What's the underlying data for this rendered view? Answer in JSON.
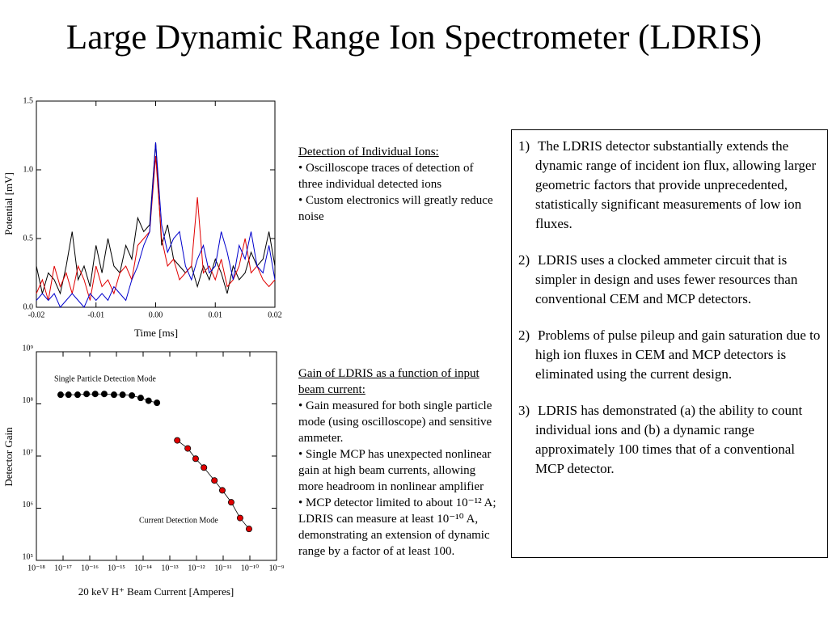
{
  "title": "Large Dynamic Range Ion Spectrometer (LDRIS)",
  "chart_data": [
    {
      "type": "line",
      "x_label": "Time [ms]",
      "y_label": "Potential [mV]",
      "x": [
        -0.02,
        -0.019,
        -0.018,
        -0.017,
        -0.016,
        -0.015,
        -0.014,
        -0.013,
        -0.012,
        -0.011,
        -0.01,
        -0.009,
        -0.008,
        -0.007,
        -0.006,
        -0.005,
        -0.004,
        -0.003,
        -0.002,
        -0.001,
        0,
        0.001,
        0.002,
        0.003,
        0.004,
        0.005,
        0.006,
        0.007,
        0.008,
        0.009,
        0.01,
        0.011,
        0.012,
        0.013,
        0.014,
        0.015,
        0.016,
        0.017,
        0.018,
        0.019,
        0.02
      ],
      "series": [
        {
          "color": "#000000",
          "values": [
            0.3,
            0.1,
            0.25,
            0.2,
            0.1,
            0.3,
            0.55,
            0.2,
            0.3,
            0.15,
            0.45,
            0.25,
            0.5,
            0.3,
            0.25,
            0.45,
            0.35,
            0.65,
            0.55,
            0.6,
            1.2,
            0.45,
            0.6,
            0.35,
            0.3,
            0.25,
            0.3,
            0.15,
            0.3,
            0.2,
            0.35,
            0.25,
            0.1,
            0.3,
            0.2,
            0.25,
            0.4,
            0.3,
            0.35,
            0.55,
            0.3
          ]
        },
        {
          "color": "#e00000",
          "values": [
            0.1,
            0.2,
            0.05,
            0.3,
            0.15,
            0.25,
            0.1,
            0.3,
            0.2,
            0.05,
            0.3,
            0.15,
            0.2,
            0.1,
            0.25,
            0.3,
            0.2,
            0.45,
            0.5,
            0.55,
            1.1,
            0.5,
            0.3,
            0.35,
            0.2,
            0.25,
            0.3,
            0.8,
            0.25,
            0.3,
            0.2,
            0.35,
            0.15,
            0.2,
            0.3,
            0.5,
            0.25,
            0.3,
            0.2,
            0.15,
            0.2
          ]
        },
        {
          "color": "#0000cc",
          "values": [
            0.05,
            0.1,
            0.05,
            0.1,
            0.0,
            0.05,
            0.1,
            0.05,
            0.0,
            0.1,
            0.05,
            0.1,
            0.05,
            0.15,
            0.1,
            0.05,
            0.2,
            0.3,
            0.45,
            0.55,
            1.2,
            0.6,
            0.4,
            0.5,
            0.55,
            0.3,
            0.2,
            0.35,
            0.45,
            0.25,
            0.3,
            0.55,
            0.4,
            0.2,
            0.45,
            0.35,
            0.55,
            0.3,
            0.25,
            0.45,
            0.2
          ]
        }
      ],
      "xlim": [
        -0.02,
        0.02
      ],
      "xticks": [
        -0.02,
        -0.01,
        {
          "value": 0,
          "label": "0.00"
        },
        0.01,
        0.02
      ],
      "ylim": [
        0,
        1.5
      ],
      "yticks": [
        {
          "value": 0,
          "label": "0.0"
        },
        0.5,
        {
          "value": 1,
          "label": "1.0"
        },
        1.5
      ]
    },
    {
      "type": "scatter",
      "x_label": "20 keV H⁺ Beam Current [Amperes]",
      "y_label": "Detector Gain",
      "xscale": "log",
      "yscale": "log",
      "series": [
        {
          "name": "Single Particle Detection Mode",
          "color": "#000000",
          "x": [
            8.1e-18,
            1.6e-17,
            3.5e-17,
            7.6e-17,
            1.6e-16,
            3.5e-16,
            8.1e-16,
            1.7e-15,
            3.8e-15,
            8.1e-15,
            1.6e-14,
            3.3e-14
          ],
          "values": [
            150000000.0,
            150000000.0,
            150000000.0,
            155000000.0,
            155000000.0,
            155000000.0,
            150000000.0,
            150000000.0,
            145000000.0,
            130000000.0,
            115000000.0,
            105000000.0
          ]
        },
        {
          "name": "Current Detection Mode",
          "color": "#e00000",
          "x": [
            1.9e-13,
            4.7e-13,
            9.3e-13,
            1.9e-12,
            4.7e-12,
            9.3e-12,
            2e-11,
            4.3e-11,
            9.3e-11
          ],
          "values": [
            20000000.0,
            14000000.0,
            8900000.0,
            6000000.0,
            3400000.0,
            2200000.0,
            1300000.0,
            650000.0,
            400000.0
          ]
        }
      ],
      "xlim": [
        1e-18,
        1e-09
      ],
      "xticks": [
        {
          "value": 1e-18,
          "label": "10⁻¹⁸"
        },
        {
          "value": 1e-17,
          "label": "10⁻¹⁷"
        },
        {
          "value": 1e-16,
          "label": "10⁻¹⁶"
        },
        {
          "value": 1e-15,
          "label": "10⁻¹⁵"
        },
        {
          "value": 1e-14,
          "label": "10⁻¹⁴"
        },
        {
          "value": 1e-13,
          "label": "10⁻¹³"
        },
        {
          "value": 1e-12,
          "label": "10⁻¹²"
        },
        {
          "value": 1e-11,
          "label": "10⁻¹¹"
        },
        {
          "value": 1e-10,
          "label": "10⁻¹⁰"
        },
        {
          "value": 1e-09,
          "label": "10⁻⁹"
        }
      ],
      "ylim": [
        100000.0,
        1000000000.0
      ],
      "yticks": [
        {
          "value": 100000.0,
          "label": "10⁵"
        },
        {
          "value": 1000000.0,
          "label": "10⁶"
        },
        {
          "value": 10000000.0,
          "label": "10⁷"
        },
        {
          "value": 100000000.0,
          "label": "10⁸"
        },
        {
          "value": 1000000000.0,
          "label": "10⁹"
        }
      ]
    }
  ],
  "notes": [
    {
      "heading": "Detection of Individual Ions:",
      "items": [
        "Oscilloscope traces of detection of three individual detected ions",
        "Custom electronics will greatly reduce noise"
      ]
    },
    {
      "heading": "Gain of LDRIS as a function of input beam current:",
      "items": [
        "Gain measured for both single particle mode (using oscilloscope) and sensitive ammeter.",
        "Single MCP has unexpected nonlinear gain at high beam currents, allowing more headroom in nonlinear amplifier",
        "MCP detector limited to about 10⁻¹² A; LDRIS can measure at least 10⁻¹⁰ A, demonstrating an extension of dynamic range by a factor of at least 100."
      ]
    }
  ],
  "box": [
    {
      "number": "1)",
      "text": "The LDRIS detector substantially extends the dynamic range of incident ion flux, allowing larger geometric factors that provide unprecedented, statistically significant measurements of low ion fluxes."
    },
    {
      "number": "2)",
      "text": "LDRIS uses a clocked ammeter circuit that is simpler in design and uses fewer resources than conventional CEM and MCP detectors."
    },
    {
      "number": "2)",
      "text": "Problems of pulse pileup and gain saturation due to high ion fluxes in CEM and MCP detectors is eliminated using the current design."
    },
    {
      "number": "3)",
      "text": "LDRIS has demonstrated (a) the ability to count individual ions and (b) a dynamic range approximately 100 times that of a conventional MCP detector."
    }
  ]
}
